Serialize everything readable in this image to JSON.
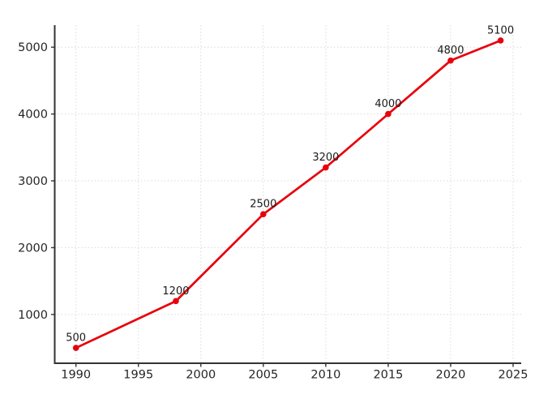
{
  "chart_data": {
    "type": "line",
    "x": [
      1990,
      1998,
      2005,
      2010,
      2015,
      2020,
      2024
    ],
    "values": [
      500,
      1200,
      2500,
      3200,
      4000,
      4800,
      5100
    ],
    "point_labels": [
      "500",
      "1200",
      "2500",
      "3200",
      "4000",
      "4800",
      "5100"
    ],
    "x_ticks": [
      1990,
      1995,
      2000,
      2005,
      2010,
      2015,
      2020,
      2025
    ],
    "x_tick_labels": [
      "1990",
      "1995",
      "2000",
      "2005",
      "2010",
      "2015",
      "2020",
      "2025"
    ],
    "y_ticks": [
      1000,
      2000,
      3000,
      4000,
      5000
    ],
    "y_tick_labels": [
      "1000",
      "2000",
      "3000",
      "4000",
      "5000"
    ],
    "xlim": [
      1988.3,
      2025.65
    ],
    "ylim": [
      270,
      5330
    ],
    "grid": true,
    "legend": false,
    "line_color": "#e8000b",
    "marker_color": "#e8000b",
    "grid_color": "#d9d9d9",
    "axis_color": "#333333",
    "tick_label_color": "#262626",
    "annotation_color": "#1a1a1a",
    "background_color": "#ffffff"
  }
}
